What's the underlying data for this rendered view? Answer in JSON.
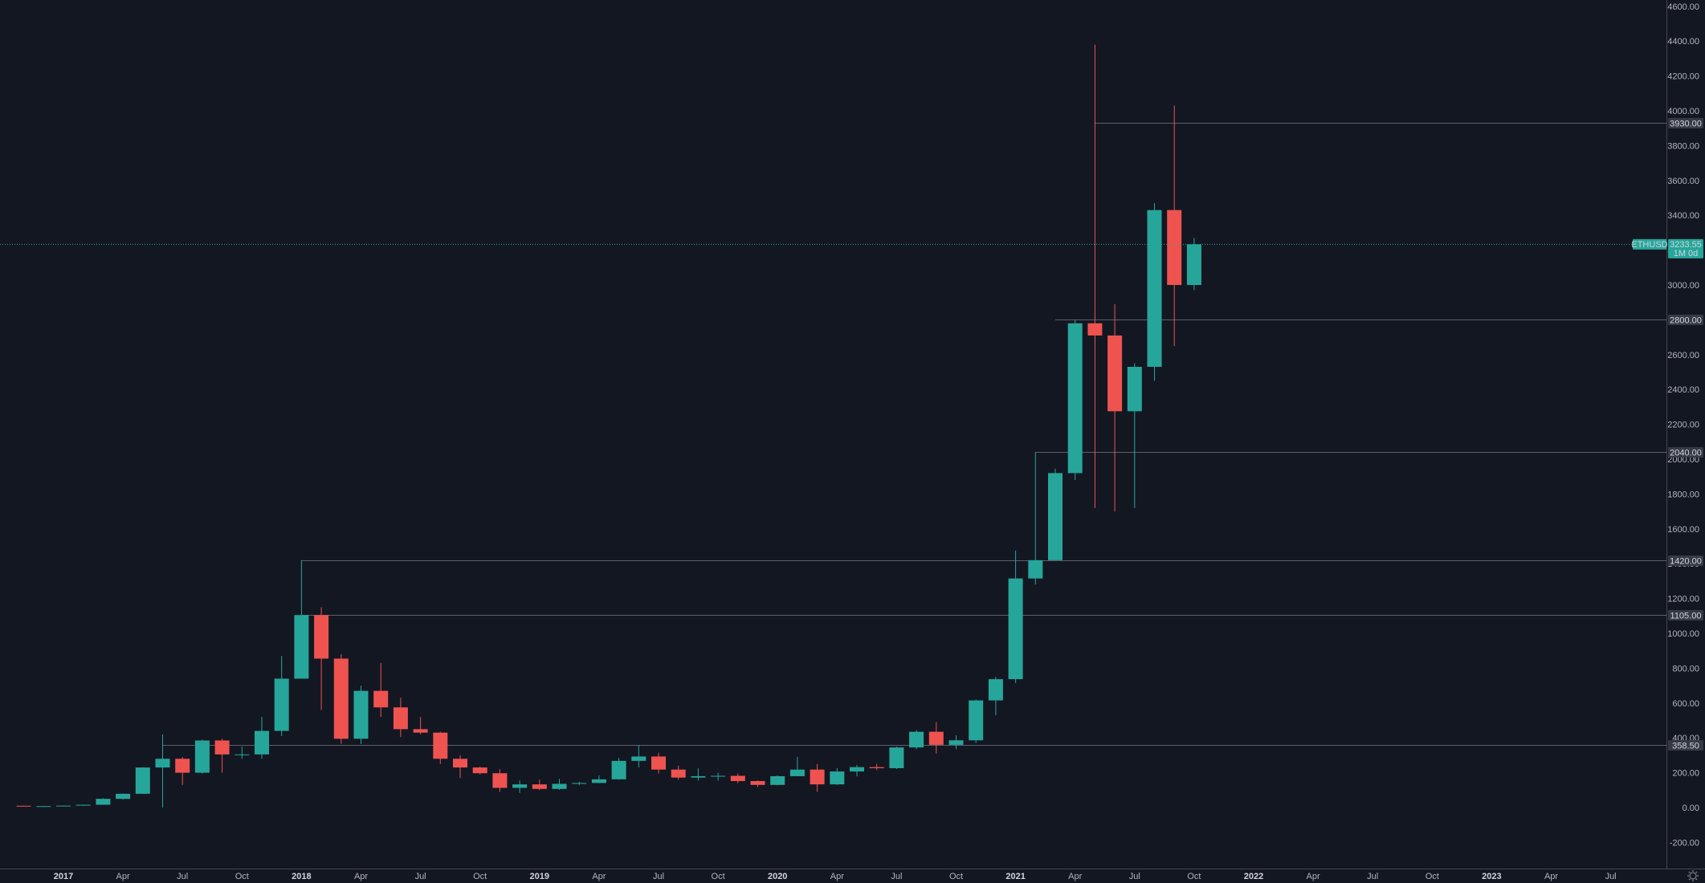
{
  "colors": {
    "background": "#131722",
    "up": "#26a69a",
    "down": "#ef5350",
    "axis_line": "#434651",
    "level_line": "#5d606b",
    "label_bg": "#363a45",
    "price_bg": "#26a69a"
  },
  "gear_icon": "gear-icon",
  "chart_data": {
    "type": "candlestick",
    "symbol": "ETHUSD",
    "interval": "1M",
    "current_price": 3233.55,
    "current_price_label": "3233.55",
    "countdown_label": "1M 0d",
    "y_ticks": [
      "4600.00",
      "4400.00",
      "4200.00",
      "4000.00",
      "3800.00",
      "3600.00",
      "3400.00",
      "3200.00",
      "3000.00",
      "2800.00",
      "2600.00",
      "2400.00",
      "2200.00",
      "2000.00",
      "1800.00",
      "1600.00",
      "1400.00",
      "1200.00",
      "1000.00",
      "800.00",
      "600.00",
      "400.00",
      "200.00",
      "0.00",
      "-200.00"
    ],
    "x_ticks": [
      {
        "label": "2017",
        "date": "2017-01",
        "bold": true
      },
      {
        "label": "Apr",
        "date": "2017-04"
      },
      {
        "label": "Jul",
        "date": "2017-07"
      },
      {
        "label": "Oct",
        "date": "2017-10"
      },
      {
        "label": "2018",
        "date": "2018-01",
        "bold": true
      },
      {
        "label": "Apr",
        "date": "2018-04"
      },
      {
        "label": "Jul",
        "date": "2018-07"
      },
      {
        "label": "Oct",
        "date": "2018-10"
      },
      {
        "label": "2019",
        "date": "2019-01",
        "bold": true
      },
      {
        "label": "Apr",
        "date": "2019-04"
      },
      {
        "label": "Jul",
        "date": "2019-07"
      },
      {
        "label": "Oct",
        "date": "2019-10"
      },
      {
        "label": "2020",
        "date": "2020-01",
        "bold": true
      },
      {
        "label": "Apr",
        "date": "2020-04"
      },
      {
        "label": "Jul",
        "date": "2020-07"
      },
      {
        "label": "Oct",
        "date": "2020-10"
      },
      {
        "label": "2021",
        "date": "2021-01",
        "bold": true
      },
      {
        "label": "Apr",
        "date": "2021-04"
      },
      {
        "label": "Jul",
        "date": "2021-07"
      },
      {
        "label": "Oct",
        "date": "2021-10"
      },
      {
        "label": "2022",
        "date": "2022-01",
        "bold": true
      },
      {
        "label": "Apr",
        "date": "2022-04"
      },
      {
        "label": "Jul",
        "date": "2022-07"
      },
      {
        "label": "Oct",
        "date": "2022-10"
      },
      {
        "label": "2023",
        "date": "2023-01",
        "bold": true
      },
      {
        "label": "Apr",
        "date": "2023-04"
      },
      {
        "label": "Jul",
        "date": "2023-07"
      }
    ],
    "levels": [
      {
        "price": 3930,
        "label": "3930.00",
        "from": "2021-05"
      },
      {
        "price": 2800,
        "label": "2800.00",
        "from": "2021-03"
      },
      {
        "price": 2040,
        "label": "2040.00",
        "from": "2021-02"
      },
      {
        "price": 1420,
        "label": "1420.00",
        "from": "2018-01"
      },
      {
        "price": 1105,
        "label": "1105.00",
        "from": "2018-01"
      },
      {
        "price": 358.5,
        "label": "358.50",
        "from": "2017-06"
      }
    ],
    "candles": [
      {
        "date": "2016-11",
        "o": 10,
        "h": 11,
        "l": 8,
        "c": 8
      },
      {
        "date": "2016-12",
        "o": 8,
        "h": 9,
        "l": 7,
        "c": 8
      },
      {
        "date": "2017-01",
        "o": 8,
        "h": 11,
        "l": 8,
        "c": 11
      },
      {
        "date": "2017-02",
        "o": 11,
        "h": 16,
        "l": 10,
        "c": 16
      },
      {
        "date": "2017-03",
        "o": 16,
        "h": 53,
        "l": 16,
        "c": 50
      },
      {
        "date": "2017-04",
        "o": 50,
        "h": 80,
        "l": 45,
        "c": 79
      },
      {
        "date": "2017-05",
        "o": 79,
        "h": 231,
        "l": 78,
        "c": 230
      },
      {
        "date": "2017-06",
        "o": 230,
        "h": 420,
        "l": 0,
        "c": 280
      },
      {
        "date": "2017-07",
        "o": 280,
        "h": 290,
        "l": 130,
        "c": 200
      },
      {
        "date": "2017-08",
        "o": 200,
        "h": 390,
        "l": 195,
        "c": 385
      },
      {
        "date": "2017-09",
        "o": 385,
        "h": 395,
        "l": 200,
        "c": 305
      },
      {
        "date": "2017-10",
        "o": 305,
        "h": 350,
        "l": 280,
        "c": 305
      },
      {
        "date": "2017-11",
        "o": 305,
        "h": 520,
        "l": 280,
        "c": 440
      },
      {
        "date": "2017-12",
        "o": 440,
        "h": 870,
        "l": 410,
        "c": 740
      },
      {
        "date": "2018-01",
        "o": 740,
        "h": 1420,
        "l": 740,
        "c": 1105
      },
      {
        "date": "2018-02",
        "o": 1105,
        "h": 1150,
        "l": 560,
        "c": 855
      },
      {
        "date": "2018-03",
        "o": 855,
        "h": 880,
        "l": 365,
        "c": 395
      },
      {
        "date": "2018-04",
        "o": 395,
        "h": 700,
        "l": 365,
        "c": 670
      },
      {
        "date": "2018-05",
        "o": 670,
        "h": 830,
        "l": 520,
        "c": 575
      },
      {
        "date": "2018-06",
        "o": 575,
        "h": 630,
        "l": 405,
        "c": 450
      },
      {
        "date": "2018-07",
        "o": 450,
        "h": 520,
        "l": 420,
        "c": 430
      },
      {
        "date": "2018-08",
        "o": 430,
        "h": 435,
        "l": 250,
        "c": 280
      },
      {
        "date": "2018-09",
        "o": 280,
        "h": 300,
        "l": 170,
        "c": 230
      },
      {
        "date": "2018-10",
        "o": 230,
        "h": 235,
        "l": 190,
        "c": 197
      },
      {
        "date": "2018-11",
        "o": 197,
        "h": 220,
        "l": 90,
        "c": 113
      },
      {
        "date": "2018-12",
        "o": 113,
        "h": 155,
        "l": 84,
        "c": 133
      },
      {
        "date": "2019-01",
        "o": 133,
        "h": 160,
        "l": 100,
        "c": 107
      },
      {
        "date": "2019-02",
        "o": 107,
        "h": 165,
        "l": 102,
        "c": 136
      },
      {
        "date": "2019-03",
        "o": 136,
        "h": 148,
        "l": 128,
        "c": 141
      },
      {
        "date": "2019-04",
        "o": 141,
        "h": 185,
        "l": 140,
        "c": 162
      },
      {
        "date": "2019-05",
        "o": 162,
        "h": 285,
        "l": 160,
        "c": 268
      },
      {
        "date": "2019-06",
        "o": 268,
        "h": 360,
        "l": 230,
        "c": 293
      },
      {
        "date": "2019-07",
        "o": 293,
        "h": 315,
        "l": 195,
        "c": 218
      },
      {
        "date": "2019-08",
        "o": 218,
        "h": 240,
        "l": 160,
        "c": 172
      },
      {
        "date": "2019-09",
        "o": 172,
        "h": 225,
        "l": 155,
        "c": 180
      },
      {
        "date": "2019-10",
        "o": 180,
        "h": 200,
        "l": 155,
        "c": 182
      },
      {
        "date": "2019-11",
        "o": 182,
        "h": 195,
        "l": 140,
        "c": 152
      },
      {
        "date": "2019-12",
        "o": 152,
        "h": 155,
        "l": 118,
        "c": 130
      },
      {
        "date": "2020-01",
        "o": 130,
        "h": 185,
        "l": 128,
        "c": 180
      },
      {
        "date": "2020-02",
        "o": 180,
        "h": 290,
        "l": 180,
        "c": 218
      },
      {
        "date": "2020-03",
        "o": 218,
        "h": 250,
        "l": 90,
        "c": 133
      },
      {
        "date": "2020-04",
        "o": 133,
        "h": 227,
        "l": 130,
        "c": 207
      },
      {
        "date": "2020-05",
        "o": 207,
        "h": 245,
        "l": 180,
        "c": 232
      },
      {
        "date": "2020-06",
        "o": 232,
        "h": 250,
        "l": 215,
        "c": 226
      },
      {
        "date": "2020-07",
        "o": 226,
        "h": 350,
        "l": 221,
        "c": 345
      },
      {
        "date": "2020-08",
        "o": 345,
        "h": 445,
        "l": 335,
        "c": 435
      },
      {
        "date": "2020-09",
        "o": 435,
        "h": 490,
        "l": 310,
        "c": 360
      },
      {
        "date": "2020-10",
        "o": 360,
        "h": 415,
        "l": 335,
        "c": 386
      },
      {
        "date": "2020-11",
        "o": 386,
        "h": 620,
        "l": 370,
        "c": 615
      },
      {
        "date": "2020-12",
        "o": 615,
        "h": 750,
        "l": 530,
        "c": 737
      },
      {
        "date": "2021-01",
        "o": 737,
        "h": 1475,
        "l": 715,
        "c": 1315
      },
      {
        "date": "2021-02",
        "o": 1315,
        "h": 2040,
        "l": 1280,
        "c": 1420
      },
      {
        "date": "2021-03",
        "o": 1420,
        "h": 1945,
        "l": 1420,
        "c": 1920
      },
      {
        "date": "2021-04",
        "o": 1920,
        "h": 2800,
        "l": 1880,
        "c": 2780
      },
      {
        "date": "2021-05",
        "o": 2780,
        "h": 4380,
        "l": 1720,
        "c": 2710
      },
      {
        "date": "2021-06",
        "o": 2710,
        "h": 2890,
        "l": 1700,
        "c": 2275
      },
      {
        "date": "2021-07",
        "o": 2275,
        "h": 2550,
        "l": 1720,
        "c": 2530
      },
      {
        "date": "2021-08",
        "o": 2530,
        "h": 3470,
        "l": 2450,
        "c": 3430
      },
      {
        "date": "2021-09",
        "o": 3430,
        "h": 4030,
        "l": 2650,
        "c": 3000
      },
      {
        "date": "2021-10",
        "o": 3000,
        "h": 3270,
        "l": 2970,
        "c": 3233.55
      }
    ]
  }
}
